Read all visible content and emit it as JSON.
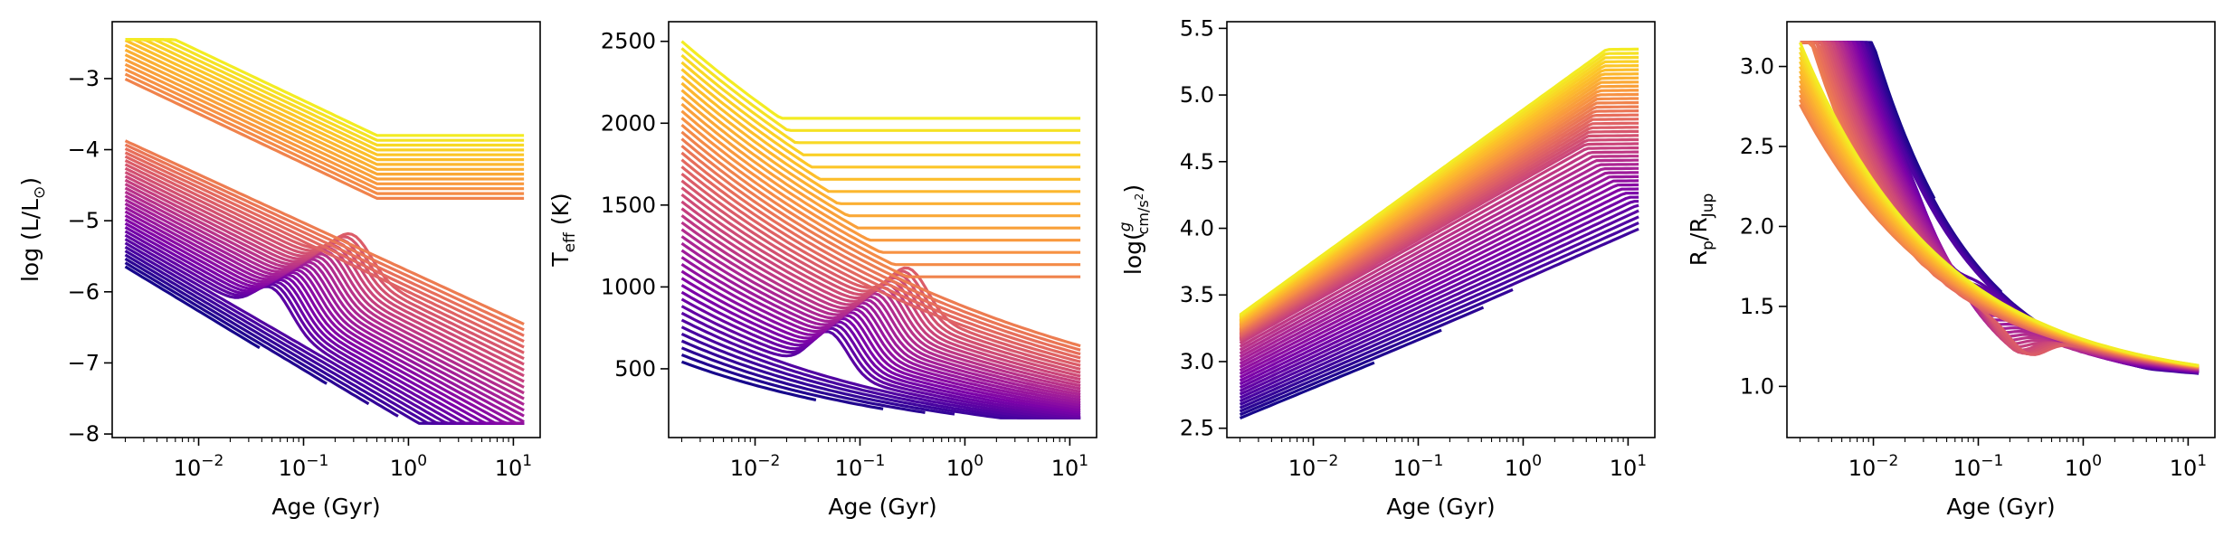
{
  "colormap": {
    "name": "plasma",
    "start": "#0d0887",
    "mid1": "#7e03a8",
    "mid2": "#cc4778",
    "mid3": "#f89540",
    "end": "#f0f921"
  },
  "chart_data": [
    {
      "id": "luminosity",
      "type": "line",
      "xscale": "log",
      "xlabel": "Age (Gyr)",
      "ylabel_parts": {
        "main": "log (L/L",
        "sub": "⊙",
        "close": ")"
      },
      "xlim": [
        0.0015,
        18
      ],
      "ylim": [
        -8.05,
        -2.2
      ],
      "xticks": [
        {
          "v": 0.01,
          "base": "10",
          "exp": "−2"
        },
        {
          "v": 0.1,
          "base": "10",
          "exp": "−1"
        },
        {
          "v": 1,
          "base": "10",
          "exp": "0"
        },
        {
          "v": 10,
          "base": "10",
          "exp": "1"
        }
      ],
      "yticks": [
        {
          "v": -8,
          "label": "−8"
        },
        {
          "v": -7,
          "label": "−7"
        },
        {
          "v": -6,
          "label": "−6"
        },
        {
          "v": -5,
          "label": "−5"
        },
        {
          "v": -4,
          "label": "−4"
        },
        {
          "v": -3,
          "label": "−3"
        }
      ],
      "n_tracks": 48,
      "series_description": "cooling tracks, low mass (dark purple) fading faster; high mass (yellow) plateau near -3.8"
    },
    {
      "id": "teff",
      "type": "line",
      "xscale": "log",
      "xlabel": "Age (Gyr)",
      "ylabel_parts": {
        "main": "T",
        "sub": "eff",
        "close": " (K)"
      },
      "xlim": [
        0.0015,
        18
      ],
      "ylim": [
        80,
        2620
      ],
      "xticks": [
        {
          "v": 0.01,
          "base": "10",
          "exp": "−2"
        },
        {
          "v": 0.1,
          "base": "10",
          "exp": "−1"
        },
        {
          "v": 1,
          "base": "10",
          "exp": "0"
        },
        {
          "v": 10,
          "base": "10",
          "exp": "1"
        }
      ],
      "yticks": [
        {
          "v": 500,
          "label": "500"
        },
        {
          "v": 1000,
          "label": "1000"
        },
        {
          "v": 1500,
          "label": "1500"
        },
        {
          "v": 2000,
          "label": "2000"
        },
        {
          "v": 2500,
          "label": "2500"
        }
      ],
      "n_tracks": 48,
      "series_description": "effective temperature tracks; massive objects plateau near 2000 K"
    },
    {
      "id": "gravity",
      "type": "line",
      "xscale": "log",
      "xlabel": "Age (Gyr)",
      "ylabel_parts": {
        "main": "log(",
        "frac_num": "g",
        "frac_den": "cm/s",
        "den_exp": "2",
        "close": ")"
      },
      "xlim": [
        0.0015,
        18
      ],
      "ylim": [
        2.43,
        5.55
      ],
      "xticks": [
        {
          "v": 0.01,
          "base": "10",
          "exp": "−2"
        },
        {
          "v": 0.1,
          "base": "10",
          "exp": "−1"
        },
        {
          "v": 1,
          "base": "10",
          "exp": "0"
        },
        {
          "v": 10,
          "base": "10",
          "exp": "1"
        }
      ],
      "yticks": [
        {
          "v": 2.5,
          "label": "2.5"
        },
        {
          "v": 3.0,
          "label": "3.0"
        },
        {
          "v": 3.5,
          "label": "3.5"
        },
        {
          "v": 4.0,
          "label": "4.0"
        },
        {
          "v": 4.5,
          "label": "4.5"
        },
        {
          "v": 5.0,
          "label": "5.0"
        },
        {
          "v": 5.5,
          "label": "5.5"
        }
      ],
      "n_tracks": 48,
      "series_description": "surface gravity rising with age; massive objects reach ~5.3"
    },
    {
      "id": "radius",
      "type": "line",
      "xscale": "log",
      "xlabel": "Age (Gyr)",
      "ylabel_parts": {
        "main": "R",
        "sub": "p",
        "mid": "/R",
        "sub2": "Jup"
      },
      "xlim": [
        0.0015,
        18
      ],
      "ylim": [
        0.68,
        3.28
      ],
      "xticks": [
        {
          "v": 0.01,
          "base": "10",
          "exp": "−2"
        },
        {
          "v": 0.1,
          "base": "10",
          "exp": "−1"
        },
        {
          "v": 1,
          "base": "10",
          "exp": "0"
        },
        {
          "v": 10,
          "base": "10",
          "exp": "1"
        }
      ],
      "yticks": [
        {
          "v": 1.0,
          "label": "1.0"
        },
        {
          "v": 1.5,
          "label": "1.5"
        },
        {
          "v": 2.0,
          "label": "2.0"
        },
        {
          "v": 2.5,
          "label": "2.5"
        },
        {
          "v": 3.0,
          "label": "3.0"
        }
      ],
      "n_tracks": 48,
      "series_description": "radius contracting with age, converging near 1 R_Jup"
    }
  ]
}
